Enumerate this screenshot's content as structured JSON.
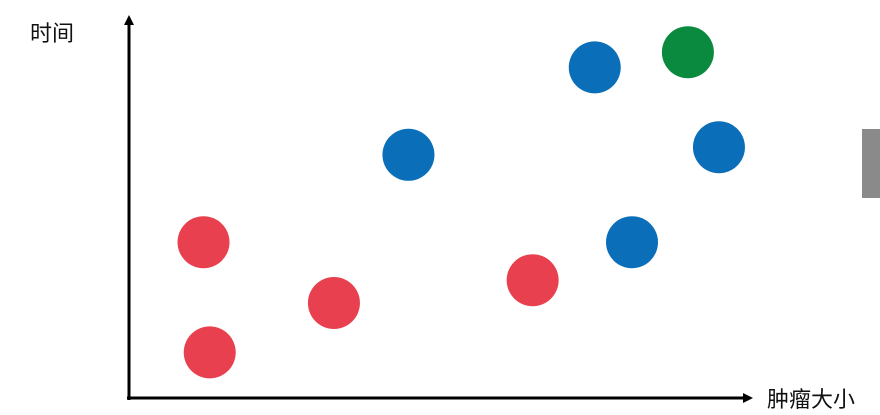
{
  "chart_data": {
    "type": "scatter",
    "title": "",
    "xlabel": "肿瘤大小",
    "ylabel": "时间",
    "xlim": [
      0,
      10
    ],
    "ylim": [
      0,
      10
    ],
    "grid": false,
    "ticks": false,
    "series": [
      {
        "color": "#e8404f",
        "points": [
          [
            1.2,
            4.1
          ],
          [
            1.3,
            1.2
          ],
          [
            3.3,
            2.5
          ],
          [
            6.5,
            3.1
          ]
        ]
      },
      {
        "color": "#0a6fb8",
        "points": [
          [
            4.5,
            6.4
          ],
          [
            7.5,
            8.7
          ],
          [
            8.1,
            4.1
          ],
          [
            9.5,
            6.6
          ]
        ]
      },
      {
        "color": "#0a8a3e",
        "points": [
          [
            9.0,
            9.1
          ]
        ]
      }
    ]
  }
}
